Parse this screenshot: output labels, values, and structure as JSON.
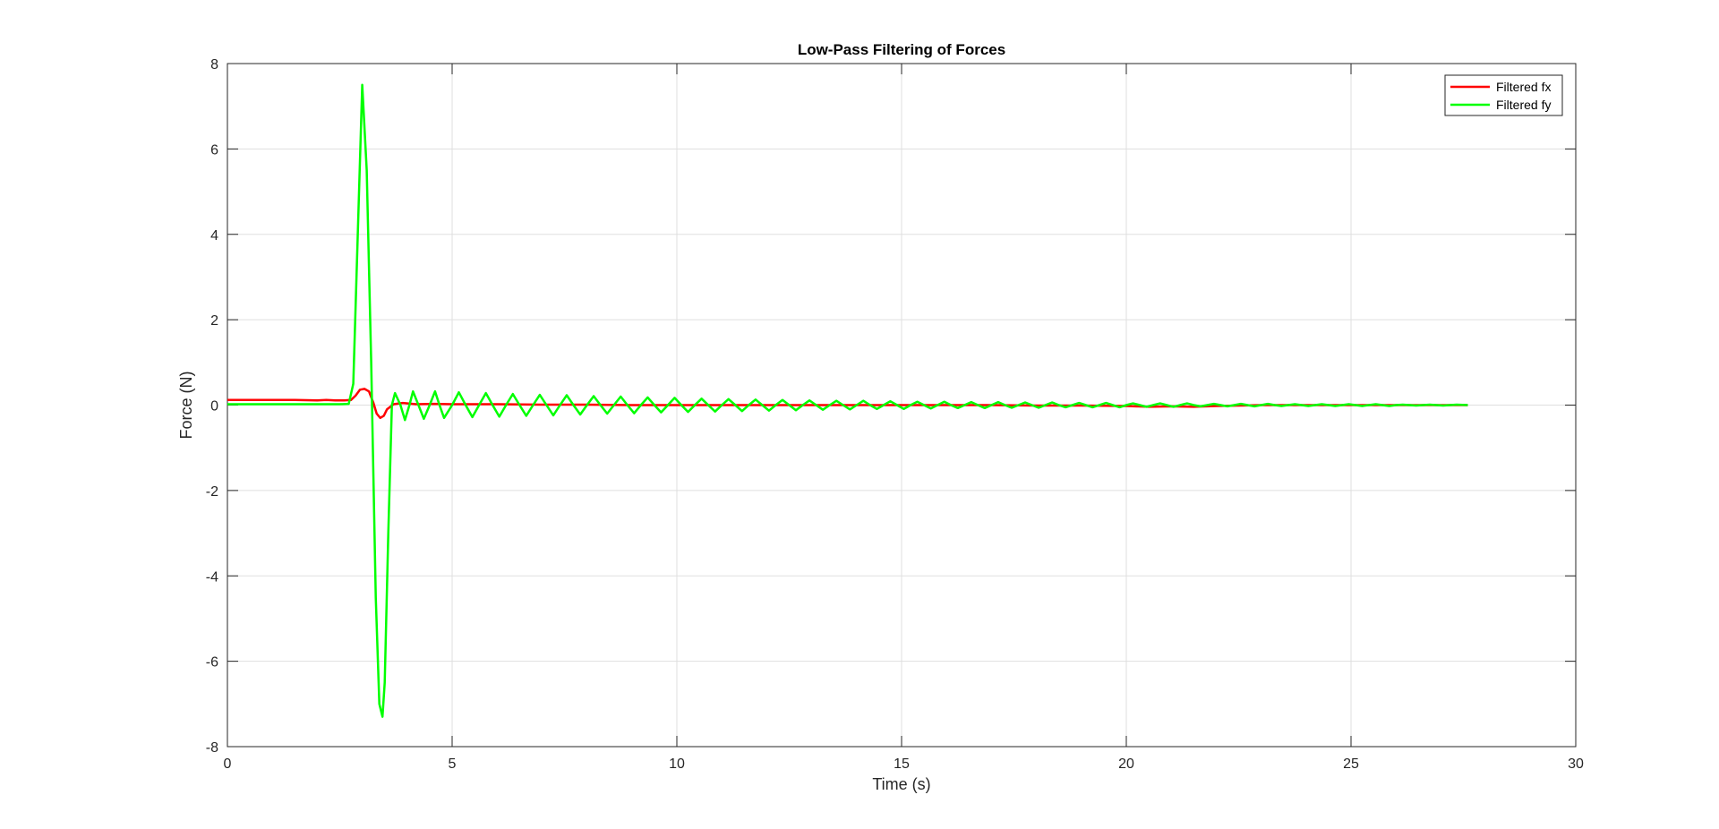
{
  "chart_data": {
    "type": "line",
    "title": "Low-Pass Filtering of Forces",
    "xlabel": "Time (s)",
    "ylabel": "Force (N)",
    "xlim": [
      0,
      30
    ],
    "ylim": [
      -8,
      8
    ],
    "xticks": [
      0,
      5,
      10,
      15,
      20,
      25,
      30
    ],
    "yticks": [
      -8,
      -6,
      -4,
      -2,
      0,
      2,
      4,
      6,
      8
    ],
    "grid": true,
    "legend": {
      "placement": "top-right",
      "entries": [
        "Filtered fx",
        "Filtered fy"
      ]
    },
    "series": [
      {
        "name": "Filtered fx",
        "color": "#ff0000",
        "points": [
          [
            0,
            0.12
          ],
          [
            0.5,
            0.12
          ],
          [
            1.0,
            0.12
          ],
          [
            1.5,
            0.12
          ],
          [
            2.0,
            0.11
          ],
          [
            2.2,
            0.12
          ],
          [
            2.4,
            0.11
          ],
          [
            2.6,
            0.11
          ],
          [
            2.75,
            0.12
          ],
          [
            2.85,
            0.22
          ],
          [
            2.95,
            0.36
          ],
          [
            3.05,
            0.38
          ],
          [
            3.15,
            0.32
          ],
          [
            3.25,
            0.05
          ],
          [
            3.32,
            -0.2
          ],
          [
            3.4,
            -0.3
          ],
          [
            3.48,
            -0.25
          ],
          [
            3.55,
            -0.1
          ],
          [
            3.7,
            0.02
          ],
          [
            3.9,
            0.05
          ],
          [
            4.2,
            0.02
          ],
          [
            4.6,
            0.03
          ],
          [
            5.0,
            0.02
          ],
          [
            6.0,
            0.02
          ],
          [
            7.0,
            0.01
          ],
          [
            8.0,
            0.01
          ],
          [
            9.0,
            0.0
          ],
          [
            10.0,
            0.0
          ],
          [
            11.0,
            0.0
          ],
          [
            12.0,
            0.0
          ],
          [
            13.0,
            0.0
          ],
          [
            14.0,
            0.0
          ],
          [
            15.0,
            0.0
          ],
          [
            16.0,
            0.0
          ],
          [
            17.0,
            0.0
          ],
          [
            18.0,
            -0.01
          ],
          [
            19.0,
            -0.01
          ],
          [
            20.0,
            -0.02
          ],
          [
            20.5,
            -0.04
          ],
          [
            21.0,
            -0.03
          ],
          [
            21.5,
            -0.04
          ],
          [
            22.0,
            -0.02
          ],
          [
            23.0,
            0.0
          ],
          [
            24.0,
            0.0
          ],
          [
            25.0,
            0.0
          ],
          [
            26.0,
            0.0
          ],
          [
            27.0,
            0.0
          ],
          [
            27.6,
            0.0
          ]
        ]
      },
      {
        "name": "Filtered fy",
        "color": "#00ff00",
        "points": [
          [
            0,
            0.02
          ],
          [
            0.5,
            0.02
          ],
          [
            1.0,
            0.02
          ],
          [
            1.5,
            0.02
          ],
          [
            2.0,
            0.02
          ],
          [
            2.5,
            0.02
          ],
          [
            2.7,
            0.03
          ],
          [
            2.8,
            0.5
          ],
          [
            2.9,
            4.0
          ],
          [
            3.0,
            7.5
          ],
          [
            3.1,
            5.5
          ],
          [
            3.2,
            1.0
          ],
          [
            3.3,
            -4.5
          ],
          [
            3.38,
            -7.0
          ],
          [
            3.45,
            -7.3
          ],
          [
            3.5,
            -6.5
          ],
          [
            3.58,
            -3.0
          ],
          [
            3.66,
            0.0
          ],
          [
            3.73,
            0.28
          ],
          [
            3.85,
            0.0
          ],
          [
            3.95,
            -0.35
          ],
          [
            4.05,
            0.0
          ],
          [
            4.13,
            0.32
          ],
          [
            4.25,
            0.0
          ],
          [
            4.37,
            -0.32
          ],
          [
            4.5,
            0.0
          ],
          [
            4.62,
            0.32
          ],
          [
            4.72,
            0.0
          ],
          [
            4.82,
            -0.3
          ],
          [
            5.0,
            0.0
          ],
          [
            5.15,
            0.3
          ],
          [
            5.3,
            0.0
          ],
          [
            5.45,
            -0.28
          ],
          [
            5.6,
            0.0
          ],
          [
            5.75,
            0.28
          ],
          [
            5.9,
            0.0
          ],
          [
            6.05,
            -0.27
          ],
          [
            6.2,
            0.0
          ],
          [
            6.35,
            0.26
          ],
          [
            6.5,
            0.0
          ],
          [
            6.65,
            -0.25
          ],
          [
            6.8,
            0.0
          ],
          [
            6.95,
            0.24
          ],
          [
            7.1,
            0.0
          ],
          [
            7.25,
            -0.24
          ],
          [
            7.4,
            0.0
          ],
          [
            7.55,
            0.23
          ],
          [
            7.7,
            0.0
          ],
          [
            7.85,
            -0.22
          ],
          [
            8.0,
            0.0
          ],
          [
            8.15,
            0.21
          ],
          [
            8.3,
            0.0
          ],
          [
            8.45,
            -0.2
          ],
          [
            8.6,
            0.0
          ],
          [
            8.75,
            0.2
          ],
          [
            8.9,
            0.0
          ],
          [
            9.05,
            -0.19
          ],
          [
            9.2,
            0.0
          ],
          [
            9.35,
            0.18
          ],
          [
            9.5,
            0.0
          ],
          [
            9.65,
            -0.17
          ],
          [
            9.8,
            0.0
          ],
          [
            9.95,
            0.17
          ],
          [
            10.1,
            0.0
          ],
          [
            10.25,
            -0.16
          ],
          [
            10.4,
            0.0
          ],
          [
            10.55,
            0.15
          ],
          [
            10.7,
            0.0
          ],
          [
            10.85,
            -0.15
          ],
          [
            11.0,
            0.0
          ],
          [
            11.15,
            0.14
          ],
          [
            11.3,
            0.0
          ],
          [
            11.45,
            -0.14
          ],
          [
            11.6,
            0.0
          ],
          [
            11.75,
            0.13
          ],
          [
            11.9,
            0.0
          ],
          [
            12.05,
            -0.13
          ],
          [
            12.2,
            0.0
          ],
          [
            12.35,
            0.12
          ],
          [
            12.5,
            0.0
          ],
          [
            12.65,
            -0.12
          ],
          [
            12.8,
            0.0
          ],
          [
            12.95,
            0.11
          ],
          [
            13.1,
            0.0
          ],
          [
            13.25,
            -0.11
          ],
          [
            13.4,
            0.0
          ],
          [
            13.55,
            0.1
          ],
          [
            13.7,
            0.0
          ],
          [
            13.85,
            -0.1
          ],
          [
            14.0,
            0.0
          ],
          [
            14.15,
            0.1
          ],
          [
            14.3,
            0.0
          ],
          [
            14.45,
            -0.09
          ],
          [
            14.6,
            0.0
          ],
          [
            14.75,
            0.09
          ],
          [
            14.9,
            0.0
          ],
          [
            15.05,
            -0.09
          ],
          [
            15.2,
            0.0
          ],
          [
            15.35,
            0.08
          ],
          [
            15.5,
            0.0
          ],
          [
            15.65,
            -0.08
          ],
          [
            15.8,
            0.0
          ],
          [
            15.95,
            0.08
          ],
          [
            16.1,
            0.0
          ],
          [
            16.25,
            -0.07
          ],
          [
            16.4,
            0.0
          ],
          [
            16.55,
            0.07
          ],
          [
            16.7,
            0.0
          ],
          [
            16.85,
            -0.07
          ],
          [
            17.0,
            0.0
          ],
          [
            17.15,
            0.07
          ],
          [
            17.3,
            0.0
          ],
          [
            17.45,
            -0.06
          ],
          [
            17.6,
            0.0
          ],
          [
            17.75,
            0.06
          ],
          [
            17.9,
            0.0
          ],
          [
            18.05,
            -0.06
          ],
          [
            18.2,
            0.0
          ],
          [
            18.35,
            0.06
          ],
          [
            18.5,
            0.0
          ],
          [
            18.65,
            -0.05
          ],
          [
            18.8,
            0.0
          ],
          [
            18.95,
            0.05
          ],
          [
            19.1,
            0.0
          ],
          [
            19.25,
            -0.05
          ],
          [
            19.4,
            0.0
          ],
          [
            19.55,
            0.05
          ],
          [
            19.7,
            0.0
          ],
          [
            19.85,
            -0.05
          ],
          [
            20.0,
            0.0
          ],
          [
            20.15,
            0.04
          ],
          [
            20.3,
            0.0
          ],
          [
            20.45,
            -0.04
          ],
          [
            20.6,
            0.0
          ],
          [
            20.75,
            0.04
          ],
          [
            20.9,
            0.0
          ],
          [
            21.05,
            -0.04
          ],
          [
            21.2,
            0.0
          ],
          [
            21.35,
            0.04
          ],
          [
            21.5,
            0.0
          ],
          [
            21.65,
            -0.03
          ],
          [
            21.8,
            0.0
          ],
          [
            21.95,
            0.03
          ],
          [
            22.1,
            0.0
          ],
          [
            22.25,
            -0.03
          ],
          [
            22.4,
            0.0
          ],
          [
            22.55,
            0.03
          ],
          [
            22.7,
            0.0
          ],
          [
            22.85,
            -0.03
          ],
          [
            23.0,
            0.0
          ],
          [
            23.15,
            0.03
          ],
          [
            23.3,
            0.0
          ],
          [
            23.45,
            -0.02
          ],
          [
            23.6,
            0.0
          ],
          [
            23.75,
            0.02
          ],
          [
            23.9,
            0.0
          ],
          [
            24.05,
            -0.02
          ],
          [
            24.2,
            0.0
          ],
          [
            24.35,
            0.02
          ],
          [
            24.5,
            0.0
          ],
          [
            24.65,
            -0.02
          ],
          [
            24.8,
            0.0
          ],
          [
            24.95,
            0.02
          ],
          [
            25.1,
            0.0
          ],
          [
            25.25,
            -0.02
          ],
          [
            25.4,
            0.0
          ],
          [
            25.55,
            0.02
          ],
          [
            25.7,
            0.0
          ],
          [
            25.85,
            -0.02
          ],
          [
            26.0,
            0.0
          ],
          [
            26.15,
            0.01
          ],
          [
            26.3,
            0.0
          ],
          [
            26.45,
            -0.01
          ],
          [
            26.6,
            0.0
          ],
          [
            26.75,
            0.01
          ],
          [
            26.9,
            0.0
          ],
          [
            27.05,
            -0.01
          ],
          [
            27.2,
            0.0
          ],
          [
            27.35,
            0.01
          ],
          [
            27.6,
            0.0
          ]
        ]
      }
    ]
  }
}
